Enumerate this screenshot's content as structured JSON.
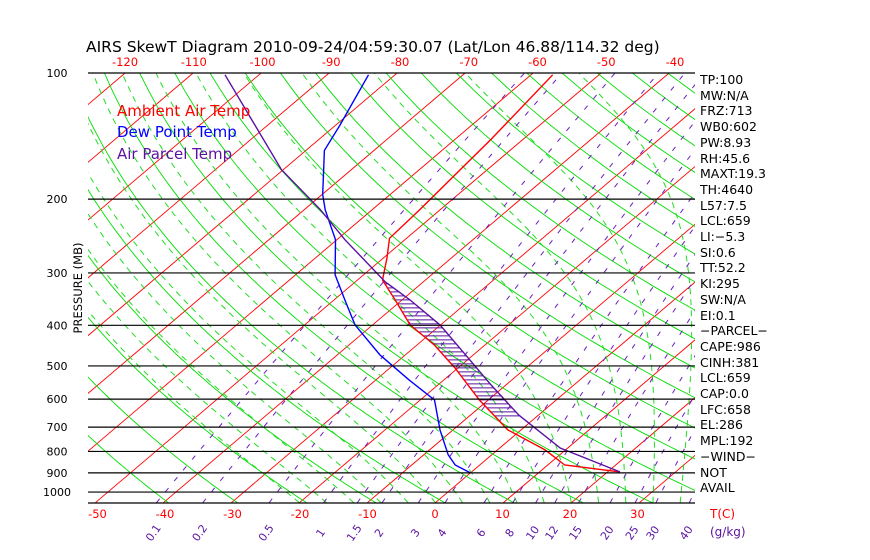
{
  "title": "AIRS SkewT Diagram 2010-09-24/04:59:30.07 (Lat/Lon 46.88/114.32 deg)",
  "legend": [
    {
      "label": "Ambient Air Temp",
      "color": "#ff0000"
    },
    {
      "label": "Dew Point Temp",
      "color": "#0000ff"
    },
    {
      "label": "Air Parcel Temp",
      "color": "#5a12a0"
    }
  ],
  "stats": [
    "TP:100",
    "MW:N/A",
    "FRZ:713",
    "WB0:602",
    "PW:8.93",
    "RH:45.6",
    "MAXT:19.3",
    "TH:4640",
    "L57:7.5",
    "LCL:659",
    "LI:−5.3",
    "SI:0.6",
    "TT:52.2",
    "KI:295",
    "SW:N/A",
    "EI:0.1",
    "−PARCEL−",
    "CAPE:986",
    "CINH:381",
    "LCL:659",
    "CAP:0.0",
    "LFC:658",
    "EL:286",
    "MPL:192",
    "−WIND−",
    " NOT",
    "AVAIL"
  ],
  "chart_data": {
    "type": "line",
    "title": "AIRS SkewT Diagram 2010-09-24/04:59:30.07 (Lat/Lon 46.88/114.32 deg)",
    "ylabel": "PRESSURE (MB)",
    "xlabel": "T(C)",
    "mixing_ratio_unit": "(g/kg)",
    "pressure_ticks": [
      100,
      200,
      300,
      400,
      500,
      600,
      700,
      800,
      900,
      1000
    ],
    "top_temp_ticks": [
      -120,
      -110,
      -100,
      -90,
      -80,
      -70,
      -60,
      -50,
      -40
    ],
    "bottom_temp_ticks": [
      -50,
      -40,
      -30,
      -20,
      -10,
      0,
      10,
      20,
      30
    ],
    "mixing_ratio_ticks": [
      "0.1",
      "0.2",
      "0.5",
      "1",
      "1.5",
      "2",
      "3",
      "4",
      "6",
      "8",
      "10",
      "12",
      "15",
      "20",
      "25",
      "30",
      "40"
    ],
    "ylim": [
      1060,
      100
    ],
    "series": [
      {
        "name": "Ambient Air Temp",
        "color": "#ff0000",
        "points": [
          [
            895,
            21.8
          ],
          [
            862,
            12.5
          ],
          [
            793,
            7.0
          ],
          [
            711,
            -1.9
          ],
          [
            603,
            -11.3
          ],
          [
            506,
            -20.4
          ],
          [
            446,
            -27.4
          ],
          [
            399,
            -34.5
          ],
          [
            348,
            -41
          ],
          [
            312,
            -46.3
          ],
          [
            276,
            -49.5
          ],
          [
            248,
            -52.5
          ],
          [
            212,
            -53
          ],
          [
            144,
            -54.7
          ],
          [
            101,
            -56.8
          ]
        ]
      },
      {
        "name": "Dew Point Temp",
        "color": "#0000ff",
        "points": [
          [
            900,
            0
          ],
          [
            862,
            -3.6
          ],
          [
            815,
            -6.4
          ],
          [
            711,
            -11.9
          ],
          [
            603,
            -17.9
          ],
          [
            541,
            -25
          ],
          [
            471,
            -33.7
          ],
          [
            399,
            -42.6
          ],
          [
            348,
            -48.4
          ],
          [
            303,
            -54.2
          ],
          [
            250,
            -60.2
          ],
          [
            212,
            -66.9
          ],
          [
            195,
            -69.9
          ],
          [
            153,
            -77.3
          ],
          [
            133,
            -79.4
          ],
          [
            101,
            -83.9
          ]
        ]
      },
      {
        "name": "Air Parcel Temp",
        "color": "#5a12a0",
        "points": [
          [
            895,
            21.8
          ],
          [
            785,
            8.9
          ],
          [
            655,
            -2.9
          ],
          [
            555,
            -12.2
          ],
          [
            470,
            -21.2
          ],
          [
            399,
            -30.1
          ],
          [
            348,
            -38.8
          ],
          [
            315,
            -45.6
          ],
          [
            250,
            -58.8
          ],
          [
            212,
            -67.6
          ],
          [
            170,
            -80.3
          ],
          [
            101,
            -105
          ]
        ]
      }
    ],
    "cape_hatch_range_mb": [
      658,
      286
    ]
  }
}
